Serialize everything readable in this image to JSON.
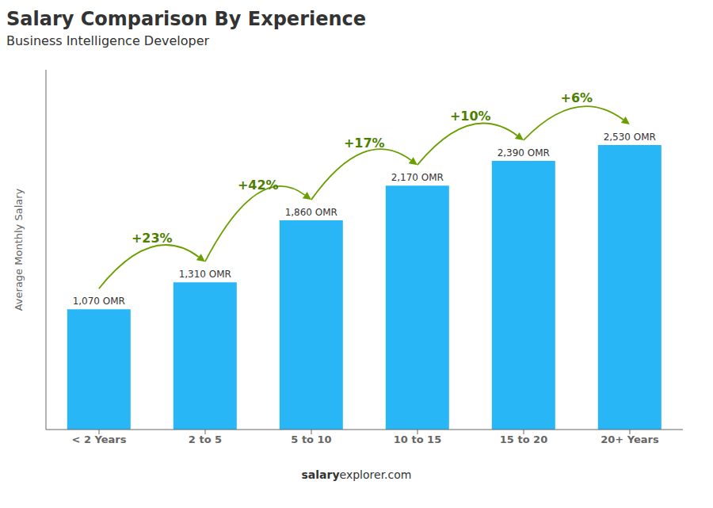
{
  "chart_data": {
    "type": "bar",
    "title": "Salary Comparison By Experience",
    "subtitle": "Business Intelligence Developer",
    "categories": [
      "< 2 Years",
      "2 to 5",
      "5 to 10",
      "10 to 15",
      "15 to 20",
      "20+ Years"
    ],
    "values": [
      1070,
      1310,
      1860,
      2170,
      2390,
      2530
    ],
    "value_labels": [
      "1,070 OMR",
      "1,310 OMR",
      "1,860 OMR",
      "2,170 OMR",
      "2,390 OMR",
      "2,530 OMR"
    ],
    "data_labels": true,
    "color": "#29b6f6",
    "ylim": [
      0,
      3200
    ],
    "y_label": "Average Monthly Salary",
    "tick_labels": "x",
    "grid": false,
    "annotations": [
      "+23%",
      "+42%",
      "+17%",
      "+10%",
      "+6%"
    ],
    "watermark": [
      "salary",
      "explorer.com"
    ]
  }
}
